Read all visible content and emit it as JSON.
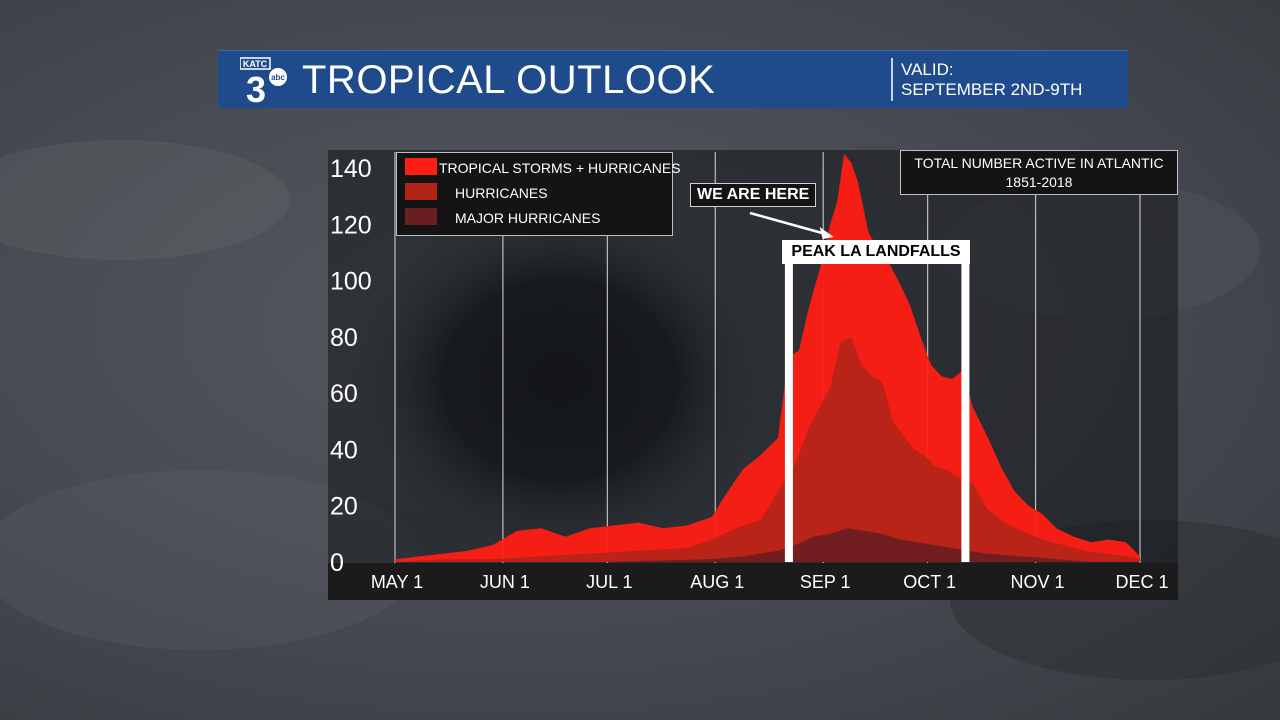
{
  "banner": {
    "station": "KATC",
    "channel": "3",
    "network": "abc",
    "title": "TROPICAL OUTLOOK",
    "valid_label": "VALID:",
    "valid_range": "SEPTEMBER 2ND-9TH"
  },
  "annotations": {
    "total_line1": "TOTAL NUMBER ACTIVE IN ATLANTIC",
    "total_line2": "1851-2018",
    "we_are_here": "WE ARE HERE",
    "peak_label": "PEAK LA LANDFALLS"
  },
  "colors": {
    "tropical": "#ff1e14",
    "hurricanes": "#b22418",
    "major": "#6a1e22",
    "banner": "#1f4a8c"
  },
  "chart_data": {
    "type": "area",
    "title": "",
    "x_kind": "day_of_year",
    "x_start": "May 1",
    "x_end": "Dec 1",
    "x_ticks": [
      {
        "label": "MAY 1",
        "day": 0
      },
      {
        "label": "JUN 1",
        "day": 31
      },
      {
        "label": "JUL 1",
        "day": 61
      },
      {
        "label": "AUG 1",
        "day": 92
      },
      {
        "label": "SEP 1",
        "day": 123
      },
      {
        "label": "OCT 1",
        "day": 153
      },
      {
        "label": "NOV 1",
        "day": 184
      },
      {
        "label": "DEC 1",
        "day": 214
      }
    ],
    "ylim": [
      0,
      140
    ],
    "y_ticks": [
      0,
      20,
      40,
      60,
      80,
      100,
      120,
      140
    ],
    "grid": "vertical",
    "legend": "top-left",
    "highlight_region": {
      "label": "PEAK LA LANDFALLS",
      "start_day": 112,
      "end_day": 165
    },
    "marker_day": 126,
    "series": [
      {
        "name": "TROPICAL STORMS + HURRICANES",
        "color": "#ff1e14",
        "days": [
          0,
          7,
          14,
          21,
          28,
          35,
          42,
          49,
          56,
          63,
          70,
          77,
          84,
          91,
          95,
          100,
          105,
          110,
          113,
          116,
          119,
          122,
          125,
          127,
          129,
          131,
          133,
          136,
          139,
          142,
          145,
          148,
          151,
          154,
          157,
          160,
          163,
          166,
          170,
          174,
          178,
          182,
          186,
          190,
          195,
          200,
          205,
          210,
          214
        ],
        "values": [
          1,
          2,
          3,
          4,
          6,
          11,
          12,
          9,
          12,
          13,
          14,
          12,
          13,
          16,
          24,
          33,
          38,
          44,
          73,
          75,
          91,
          104,
          120,
          128,
          145,
          142,
          135,
          117,
          111,
          106,
          99,
          91,
          80,
          70,
          66,
          65,
          68,
          55,
          45,
          34,
          25,
          20,
          17,
          12,
          9,
          7,
          8,
          7,
          2
        ]
      },
      {
        "name": "HURRICANES",
        "color": "#b22418",
        "days": [
          0,
          14,
          28,
          42,
          56,
          70,
          84,
          91,
          98,
          105,
          110,
          115,
          119,
          122,
          125,
          128,
          131,
          134,
          137,
          140,
          143,
          146,
          149,
          152,
          155,
          158,
          162,
          166,
          170,
          175,
          180,
          186,
          192,
          198,
          204,
          210,
          214
        ],
        "values": [
          0,
          1,
          1,
          2,
          3,
          4,
          5,
          8,
          12,
          15,
          25,
          35,
          48,
          55,
          62,
          78,
          80,
          70,
          66,
          64,
          50,
          45,
          40,
          38,
          34,
          33,
          30,
          28,
          19,
          14,
          11,
          8,
          6,
          4,
          3,
          2,
          1
        ]
      },
      {
        "name": "MAJOR HURRICANES",
        "color": "#6a1e22",
        "days": [
          0,
          30,
          60,
          90,
          100,
          110,
          115,
          120,
          125,
          130,
          135,
          140,
          145,
          150,
          155,
          160,
          165,
          170,
          180,
          190,
          200,
          214
        ],
        "values": [
          0,
          0,
          0,
          1,
          2,
          4,
          6,
          9,
          10,
          12,
          11,
          10,
          8,
          7,
          6,
          5,
          4,
          3,
          2,
          1,
          0,
          0
        ]
      }
    ]
  }
}
